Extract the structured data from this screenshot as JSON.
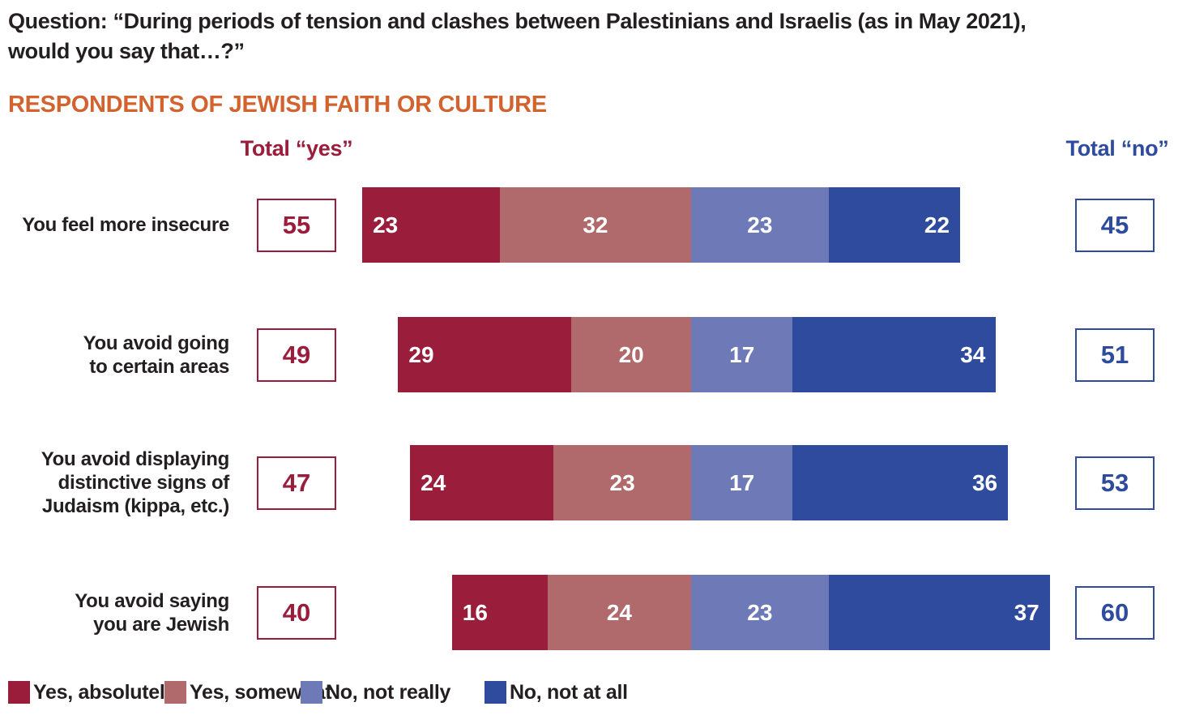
{
  "question": {
    "lines": [
      "Question: “During periods of tension and clashes between Palestinians and Israelis (as in May 2021),",
      "would you say that…?”"
    ]
  },
  "heading": "RESPONDENTS OF JEWISH FAITH OR CULTURE",
  "columns": {
    "total_yes": "Total “yes”",
    "total_no": "Total “no”"
  },
  "colors": {
    "yes_absolutely": "#9a1d3b",
    "yes_somewhat": "#b16a6c",
    "no_not_really": "#6e7ab8",
    "no_not_at_all": "#2e4b9e",
    "heading_orange": "#d2632f",
    "total_yes_accent": "#9a1d3b",
    "total_no_accent": "#2e4b9e",
    "text": "#231f20"
  },
  "chart_data": {
    "type": "bar",
    "orientation": "horizontal",
    "variant": "diverging-stacked",
    "title": "RESPONDENTS OF JEWISH FAITH OR CULTURE",
    "subtitle": "Question: “During periods of tension and clashes between Palestinians and Israelis (as in May 2021), would you say that…?”",
    "unit": "percent",
    "axis_range": [
      0,
      100
    ],
    "grid": false,
    "legend_position": "bottom",
    "categories": [
      "You feel more insecure",
      "You avoid going to certain areas",
      "You avoid displaying distinctive signs of Judaism (kippa, etc.)",
      "You avoid saying you are Jewish"
    ],
    "category_label_lines": [
      [
        "You feel more insecure"
      ],
      [
        "You avoid going",
        "to certain areas"
      ],
      [
        "You avoid displaying",
        "distinctive signs of",
        "Judaism (kippa, etc.)"
      ],
      [
        "You avoid saying",
        "you are Jewish"
      ]
    ],
    "series": [
      {
        "name": "Yes, absolutely",
        "color": "#9a1d3b",
        "values": [
          23,
          29,
          24,
          16
        ]
      },
      {
        "name": "Yes, somewhat",
        "color": "#b16a6c",
        "values": [
          32,
          20,
          23,
          24
        ]
      },
      {
        "name": "No, not really",
        "color": "#6e7ab8",
        "values": [
          23,
          17,
          17,
          23
        ]
      },
      {
        "name": "No, not at all",
        "color": "#2e4b9e",
        "values": [
          22,
          34,
          36,
          37
        ]
      }
    ],
    "totals_yes": [
      55,
      49,
      47,
      40
    ],
    "totals_no": [
      45,
      51,
      53,
      60
    ]
  },
  "legend": [
    {
      "label": "Yes, absolutely",
      "color": "#9a1d3b"
    },
    {
      "label": "Yes, somewhat",
      "color": "#b16a6c"
    },
    {
      "label": "No, not really",
      "color": "#6e7ab8"
    },
    {
      "label": "No, not at all",
      "color": "#2e4b9e"
    }
  ]
}
